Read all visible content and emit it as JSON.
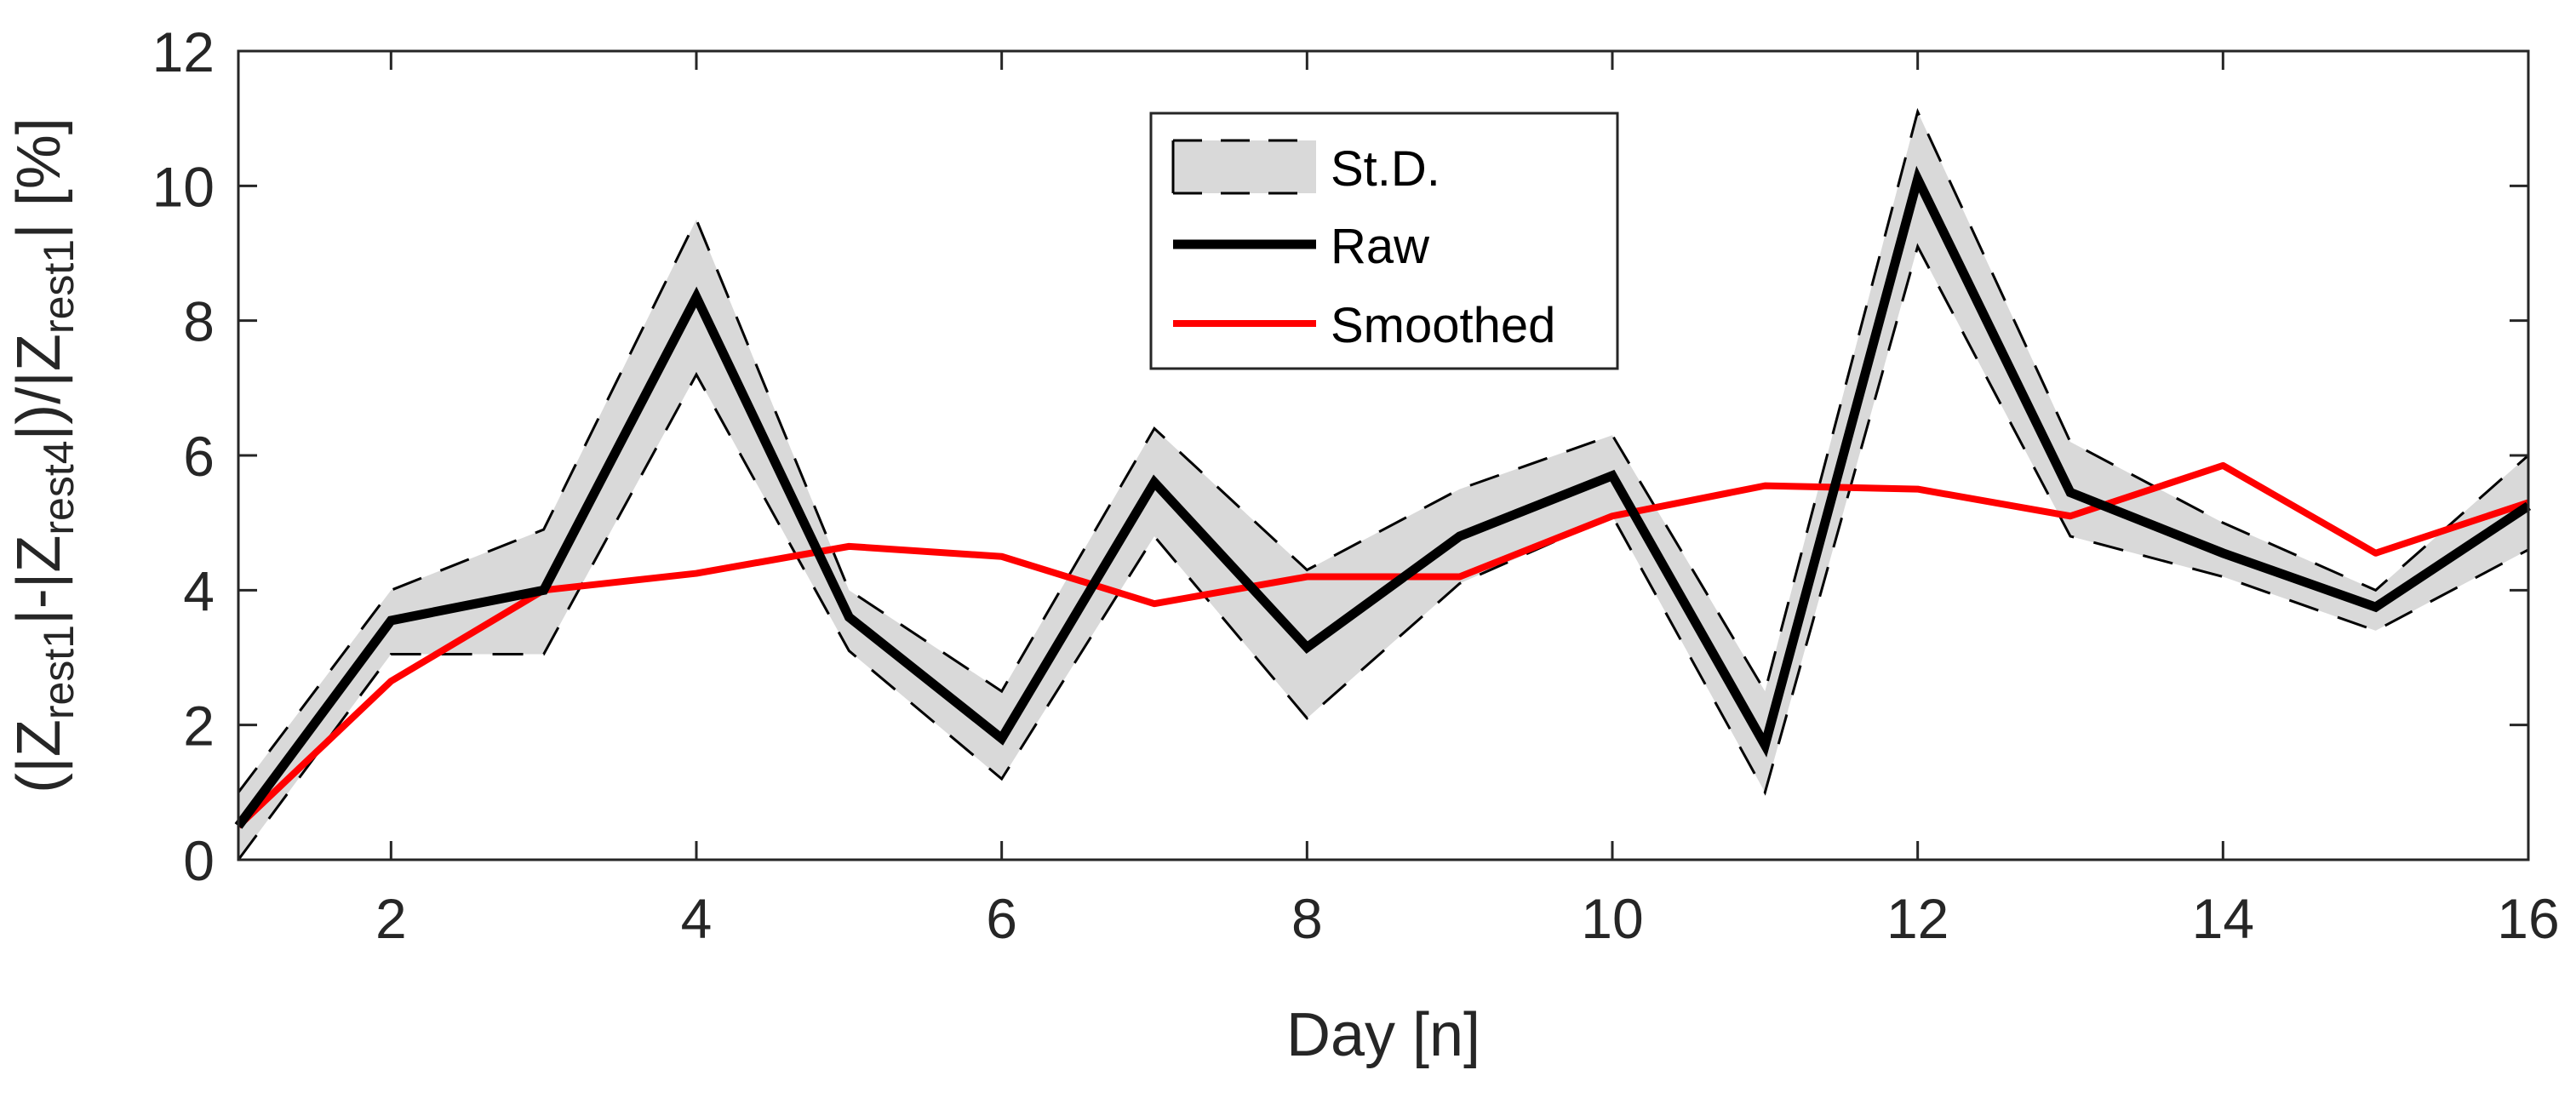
{
  "chart_data": {
    "type": "line",
    "title": "",
    "xlabel": "Day [n]",
    "ylabel_parts": {
      "open": "(|Z",
      "sub1": "rest1",
      "mid1": "|-|Z",
      "sub2": "rest4",
      "mid2": "|)/|Z",
      "sub3": "rest1",
      "close": "| [%]"
    },
    "xlim": [
      1,
      16
    ],
    "ylim": [
      0,
      12
    ],
    "xticks": [
      2,
      4,
      6,
      8,
      10,
      12,
      14,
      16
    ],
    "yticks": [
      0,
      2,
      4,
      6,
      8,
      10,
      12
    ],
    "grid": false,
    "legend_position": "top-center",
    "x": [
      1,
      2,
      3,
      4,
      5,
      6,
      7,
      8,
      9,
      10,
      11,
      12,
      13,
      14,
      15,
      16
    ],
    "series": [
      {
        "name": "St.D.",
        "kind": "band",
        "upper": [
          1.0,
          4.0,
          4.9,
          9.5,
          4.0,
          2.5,
          6.4,
          4.3,
          5.5,
          6.3,
          2.5,
          11.1,
          6.2,
          5.0,
          4.0,
          6.0
        ],
        "lower": [
          0.0,
          3.05,
          3.05,
          7.2,
          3.1,
          1.2,
          4.8,
          2.1,
          4.1,
          5.1,
          1.0,
          9.1,
          4.8,
          4.2,
          3.4,
          4.6
        ],
        "color": "#d9d9d9"
      },
      {
        "name": "Raw",
        "kind": "line",
        "values": [
          0.5,
          3.55,
          4.0,
          8.35,
          3.6,
          1.8,
          5.6,
          3.15,
          4.8,
          5.7,
          1.7,
          10.1,
          5.45,
          4.55,
          3.75,
          5.25
        ],
        "color": "#000000"
      },
      {
        "name": "Smoothed",
        "kind": "line",
        "values": [
          0.5,
          2.65,
          4.0,
          4.25,
          4.65,
          4.5,
          3.8,
          4.2,
          4.2,
          5.1,
          5.55,
          5.5,
          5.1,
          5.85,
          4.55,
          5.3
        ],
        "color": "#ff0000"
      }
    ]
  }
}
